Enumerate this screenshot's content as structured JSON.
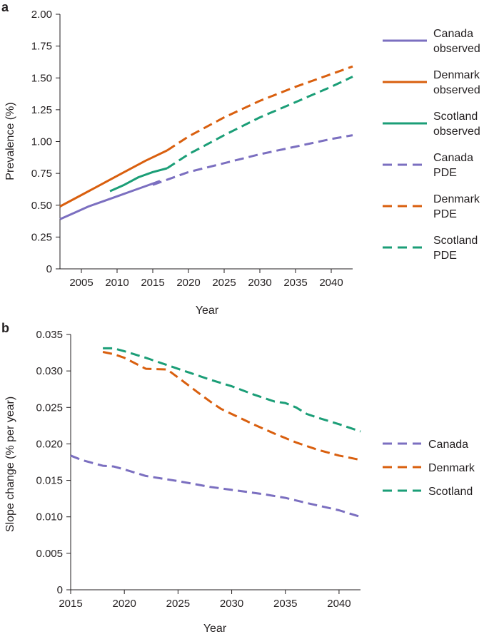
{
  "colors": {
    "canada": "#7b6fc0",
    "denmark": "#d95f0e",
    "scotland": "#1b9e77",
    "axis": "#231f20"
  },
  "chart_data": [
    {
      "panel": "a",
      "type": "line",
      "xlabel": "Year",
      "ylabel": "Prevalence (%)",
      "xlim": [
        2002,
        2043
      ],
      "ylim": [
        0,
        2.0
      ],
      "xticks": [
        2005,
        2010,
        2015,
        2020,
        2025,
        2030,
        2035,
        2040
      ],
      "yticks": [
        0,
        0.25,
        0.5,
        0.75,
        1.0,
        1.25,
        1.5,
        1.75,
        2.0
      ],
      "ytick_labels": [
        "0",
        "0.25",
        "0.50",
        "0.75",
        "1.00",
        "1.25",
        "1.50",
        "1.75",
        "2.00"
      ],
      "legend_position": "right",
      "legend": [
        {
          "series": "canada_observed",
          "line1": "Canada",
          "line2": "observed"
        },
        {
          "series": "denmark_observed",
          "line1": "Denmark",
          "line2": "observed"
        },
        {
          "series": "scotland_observed",
          "line1": "Scotland",
          "line2": "observed"
        },
        {
          "series": "canada_pde",
          "line1": "Canada",
          "line2": "PDE"
        },
        {
          "series": "denmark_pde",
          "line1": "Denmark",
          "line2": "PDE"
        },
        {
          "series": "scotland_pde",
          "line1": "Scotland",
          "line2": "PDE"
        }
      ],
      "series": [
        {
          "id": "canada_observed",
          "color": "canada",
          "dash": false,
          "x": [
            2002,
            2004,
            2006,
            2008,
            2010,
            2012,
            2014,
            2016
          ],
          "y": [
            0.39,
            0.44,
            0.49,
            0.53,
            0.57,
            0.61,
            0.65,
            0.69
          ]
        },
        {
          "id": "denmark_observed",
          "color": "denmark",
          "dash": false,
          "x": [
            2002,
            2005,
            2008,
            2011,
            2014,
            2017
          ],
          "y": [
            0.49,
            0.58,
            0.67,
            0.76,
            0.85,
            0.93
          ]
        },
        {
          "id": "scotland_observed",
          "color": "scotland",
          "dash": false,
          "x": [
            2009,
            2011,
            2013,
            2015,
            2017
          ],
          "y": [
            0.61,
            0.66,
            0.72,
            0.76,
            0.79
          ]
        },
        {
          "id": "canada_pde",
          "color": "canada",
          "dash": true,
          "x": [
            2015,
            2020,
            2025,
            2030,
            2035,
            2040,
            2043
          ],
          "y": [
            0.66,
            0.76,
            0.83,
            0.9,
            0.96,
            1.02,
            1.05
          ]
        },
        {
          "id": "denmark_pde",
          "color": "denmark",
          "dash": true,
          "x": [
            2017,
            2020,
            2025,
            2030,
            2035,
            2040,
            2043
          ],
          "y": [
            0.93,
            1.04,
            1.19,
            1.32,
            1.43,
            1.53,
            1.59
          ]
        },
        {
          "id": "scotland_pde",
          "color": "scotland",
          "dash": true,
          "x": [
            2017,
            2020,
            2025,
            2030,
            2035,
            2040,
            2043
          ],
          "y": [
            0.79,
            0.9,
            1.05,
            1.19,
            1.31,
            1.43,
            1.51
          ]
        }
      ]
    },
    {
      "panel": "b",
      "type": "line",
      "xlabel": "Year",
      "ylabel": "Slope change (% per year)",
      "xlim": [
        2015,
        2042
      ],
      "ylim": [
        0,
        0.035
      ],
      "xticks": [
        2015,
        2020,
        2025,
        2030,
        2035,
        2040
      ],
      "yticks": [
        0,
        0.005,
        0.01,
        0.015,
        0.02,
        0.025,
        0.03,
        0.035
      ],
      "ytick_labels": [
        "0",
        "0.005",
        "0.010",
        "0.015",
        "0.020",
        "0.025",
        "0.030",
        "0.035"
      ],
      "legend_position": "right",
      "legend": [
        {
          "series": "canada",
          "line1": "Canada"
        },
        {
          "series": "denmark",
          "line1": "Denmark"
        },
        {
          "series": "scotland",
          "line1": "Scotland"
        }
      ],
      "series": [
        {
          "id": "canada",
          "color": "canada",
          "dash": true,
          "x": [
            2015,
            2016,
            2018,
            2019,
            2020,
            2022,
            2025,
            2028,
            2030,
            2033,
            2035,
            2037,
            2040,
            2042
          ],
          "y": [
            0.0184,
            0.0178,
            0.017,
            0.0169,
            0.0165,
            0.0156,
            0.0149,
            0.0141,
            0.0137,
            0.0131,
            0.0126,
            0.0119,
            0.0109,
            0.01
          ]
        },
        {
          "id": "denmark",
          "color": "denmark",
          "dash": true,
          "x": [
            2018,
            2019,
            2020,
            2022,
            2024,
            2025,
            2026,
            2027,
            2028,
            2029,
            2030,
            2032,
            2034,
            2036,
            2038,
            2040,
            2042
          ],
          "y": [
            0.0326,
            0.0323,
            0.0318,
            0.0303,
            0.0302,
            0.0291,
            0.028,
            0.0269,
            0.0258,
            0.0248,
            0.0241,
            0.0227,
            0.0214,
            0.0202,
            0.0192,
            0.0184,
            0.0178
          ]
        },
        {
          "id": "scotland",
          "color": "scotland",
          "dash": true,
          "x": [
            2018,
            2019,
            2020,
            2022,
            2024,
            2026,
            2028,
            2030,
            2032,
            2034,
            2035,
            2036,
            2037,
            2038,
            2040,
            2042
          ],
          "y": [
            0.0331,
            0.0331,
            0.0327,
            0.0318,
            0.0308,
            0.0298,
            0.0288,
            0.0279,
            0.0268,
            0.0258,
            0.0256,
            0.025,
            0.0241,
            0.0236,
            0.0227,
            0.0217
          ]
        }
      ]
    }
  ]
}
